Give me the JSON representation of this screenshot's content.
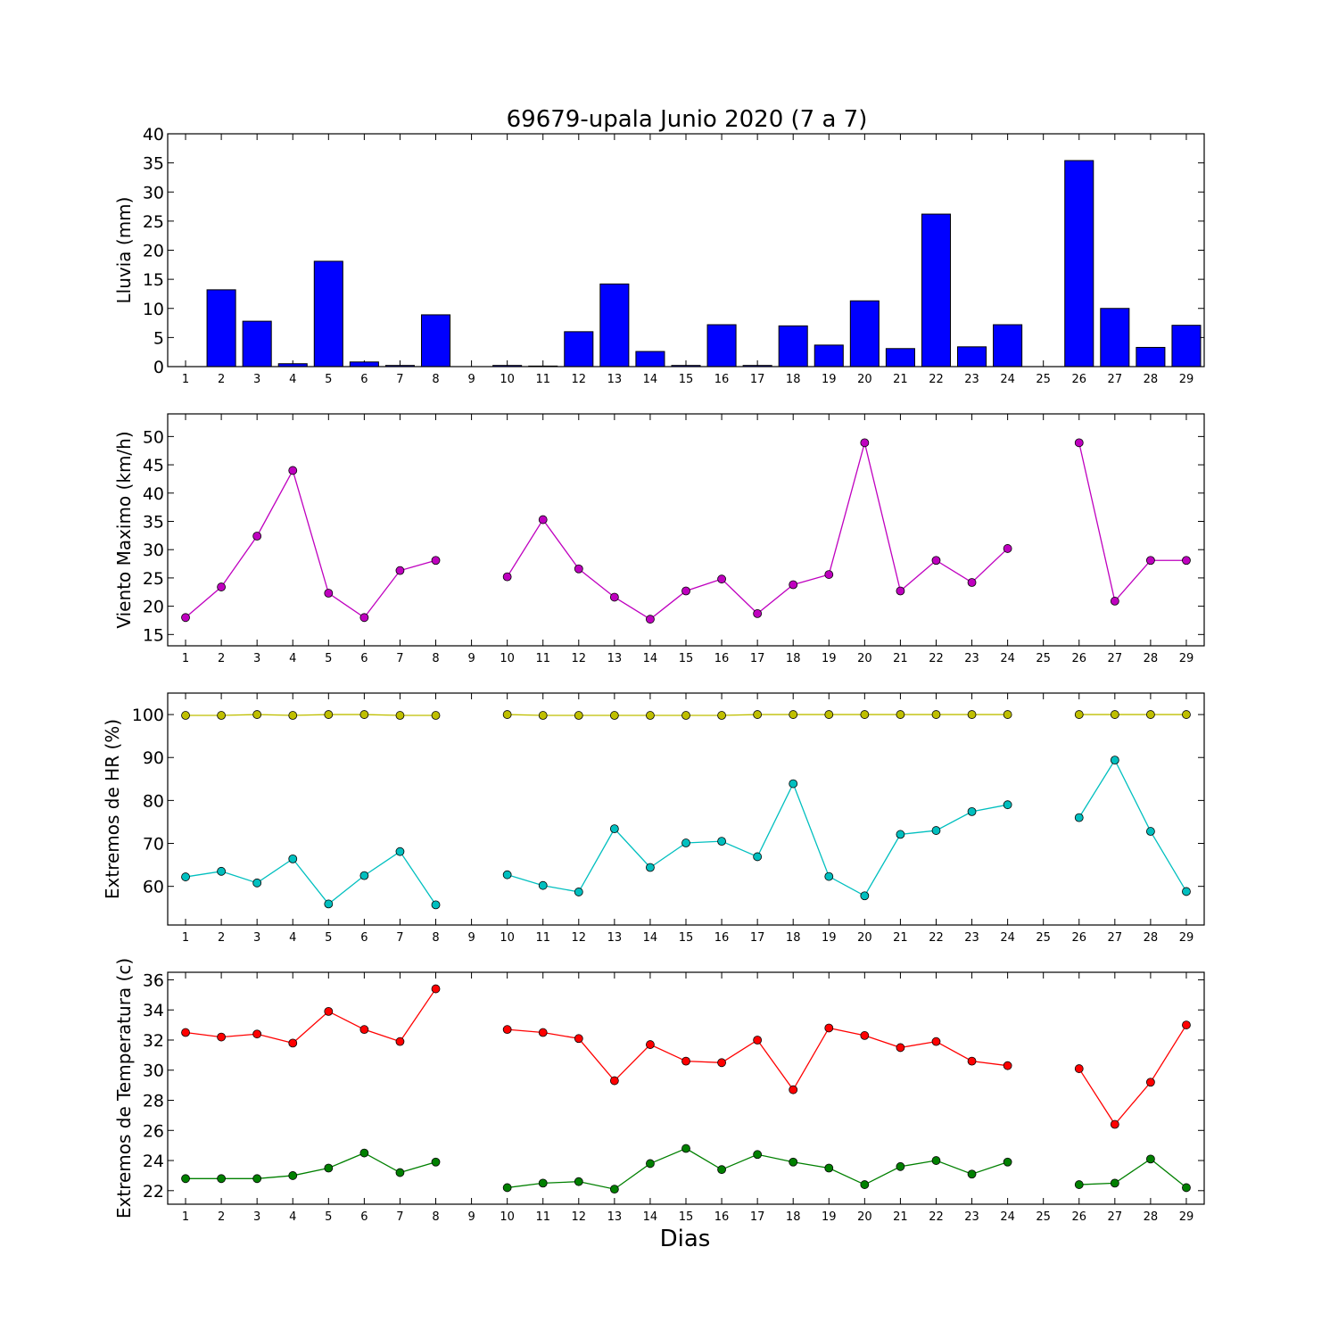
{
  "figure": {
    "title": "69679-upala Junio 2020  (7 a 7)",
    "xlabel": "Dias",
    "days": [
      1,
      2,
      3,
      4,
      5,
      6,
      7,
      8,
      9,
      10,
      11,
      12,
      13,
      14,
      15,
      16,
      17,
      18,
      19,
      20,
      21,
      22,
      23,
      24,
      25,
      26,
      27,
      28,
      29
    ],
    "colors": {
      "rain": "#0000ff",
      "wind": "#bf00bf",
      "hr_max": "#bfbf00",
      "hr_min": "#00bfbf",
      "temp_max": "#ff0000",
      "temp_min": "#008000"
    }
  },
  "chart_data": [
    {
      "type": "bar",
      "ylabel": "Lluvia (mm)",
      "ylim": [
        0,
        40
      ],
      "yticks": [
        0,
        5,
        10,
        15,
        20,
        25,
        30,
        35,
        40
      ],
      "categories": [
        1,
        2,
        3,
        4,
        5,
        6,
        7,
        8,
        9,
        10,
        11,
        12,
        13,
        14,
        15,
        16,
        17,
        18,
        19,
        20,
        21,
        22,
        23,
        24,
        25,
        26,
        27,
        28,
        29
      ],
      "values": [
        0,
        13.2,
        7.8,
        0.5,
        18.1,
        0.8,
        0.2,
        8.9,
        0,
        0.2,
        0.1,
        6.0,
        14.2,
        2.6,
        0.2,
        7.2,
        0.2,
        7.0,
        3.7,
        11.3,
        3.1,
        26.2,
        3.4,
        7.2,
        0,
        35.4,
        10.0,
        3.3,
        7.1
      ]
    },
    {
      "type": "line",
      "ylabel": "Viento Maximo (km/h)",
      "ylim": [
        13,
        54
      ],
      "yticks": [
        15,
        20,
        25,
        30,
        35,
        40,
        45,
        50
      ],
      "x": [
        1,
        2,
        3,
        4,
        5,
        6,
        7,
        8,
        9,
        10,
        11,
        12,
        13,
        14,
        15,
        16,
        17,
        18,
        19,
        20,
        21,
        22,
        23,
        24,
        25,
        26,
        27,
        28,
        29
      ],
      "series": [
        {
          "color_key": "wind",
          "values": [
            18.0,
            23.4,
            32.4,
            44.0,
            22.3,
            18.0,
            26.3,
            28.1,
            null,
            25.2,
            35.3,
            26.6,
            21.6,
            17.7,
            22.7,
            24.8,
            18.7,
            23.8,
            25.6,
            48.9,
            22.7,
            28.1,
            24.2,
            30.2,
            null,
            48.9,
            20.9,
            28.1,
            28.1
          ]
        }
      ]
    },
    {
      "type": "line",
      "ylabel": "Extremos de HR (%)",
      "ylim": [
        51,
        105
      ],
      "yticks": [
        60,
        70,
        80,
        90,
        100
      ],
      "x": [
        1,
        2,
        3,
        4,
        5,
        6,
        7,
        8,
        9,
        10,
        11,
        12,
        13,
        14,
        15,
        16,
        17,
        18,
        19,
        20,
        21,
        22,
        23,
        24,
        25,
        26,
        27,
        28,
        29
      ],
      "series": [
        {
          "color_key": "hr_max",
          "values": [
            99.8,
            99.8,
            100,
            99.8,
            100,
            100,
            99.8,
            99.8,
            null,
            100,
            99.8,
            99.8,
            99.8,
            99.8,
            99.8,
            99.8,
            100,
            100,
            100,
            100,
            100,
            100,
            100,
            100,
            null,
            100,
            100,
            100,
            100
          ]
        },
        {
          "color_key": "hr_min",
          "values": [
            62.2,
            63.5,
            60.8,
            66.4,
            55.9,
            62.5,
            68.1,
            55.7,
            null,
            62.7,
            60.2,
            58.7,
            73.4,
            64.4,
            70.1,
            70.5,
            66.9,
            83.9,
            62.3,
            57.8,
            72.1,
            73.0,
            77.4,
            79.0,
            null,
            76.0,
            89.4,
            72.8,
            58.8
          ]
        }
      ]
    },
    {
      "type": "line",
      "ylabel": "Extremos de Temperatura (c)",
      "ylim": [
        21.1,
        36.5
      ],
      "yticks": [
        22,
        24,
        26,
        28,
        30,
        32,
        34,
        36
      ],
      "x": [
        1,
        2,
        3,
        4,
        5,
        6,
        7,
        8,
        9,
        10,
        11,
        12,
        13,
        14,
        15,
        16,
        17,
        18,
        19,
        20,
        21,
        22,
        23,
        24,
        25,
        26,
        27,
        28,
        29
      ],
      "series": [
        {
          "color_key": "temp_max",
          "values": [
            32.5,
            32.2,
            32.4,
            31.8,
            33.9,
            32.7,
            31.9,
            35.4,
            null,
            32.7,
            32.5,
            32.1,
            29.3,
            31.7,
            30.6,
            30.5,
            32.0,
            28.7,
            32.8,
            32.3,
            31.5,
            31.9,
            30.6,
            30.3,
            null,
            30.1,
            26.4,
            29.2,
            33.0
          ]
        },
        {
          "color_key": "temp_min",
          "values": [
            22.8,
            22.8,
            22.8,
            23.0,
            23.5,
            24.5,
            23.2,
            23.9,
            null,
            22.2,
            22.5,
            22.6,
            22.1,
            23.8,
            24.8,
            23.4,
            24.4,
            23.9,
            23.5,
            22.4,
            23.6,
            24.0,
            23.1,
            23.9,
            null,
            22.4,
            22.5,
            24.1,
            22.2
          ]
        }
      ]
    }
  ]
}
